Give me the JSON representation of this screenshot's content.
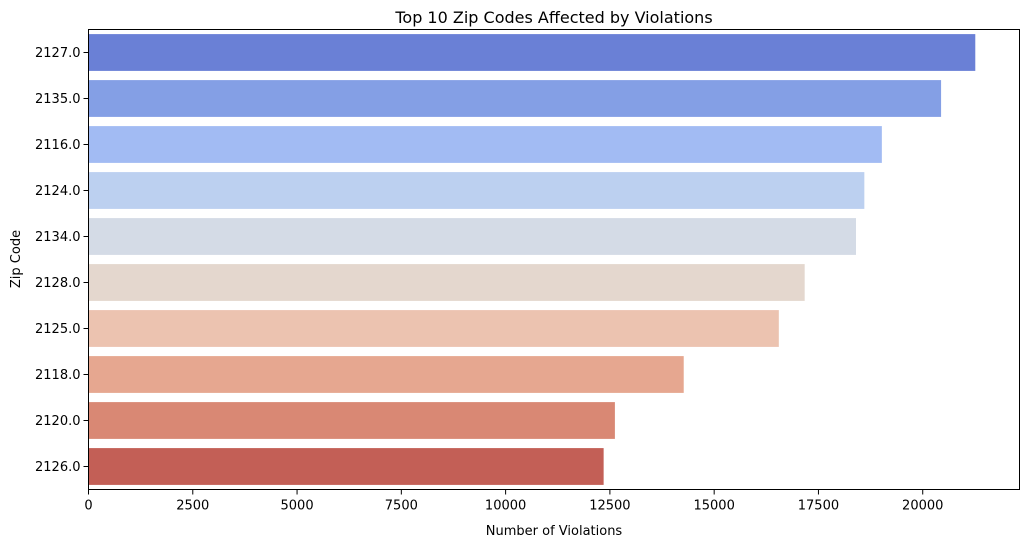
{
  "chart_data": {
    "type": "bar",
    "orientation": "horizontal",
    "title": "Top 10 Zip Codes Affected by Violations",
    "xlabel": "Number of Violations",
    "ylabel": "Zip Code",
    "categories": [
      "2127.0",
      "2135.0",
      "2116.0",
      "2124.0",
      "2134.0",
      "2128.0",
      "2125.0",
      "2118.0",
      "2120.0",
      "2126.0"
    ],
    "values": [
      21260,
      20440,
      19020,
      18600,
      18400,
      17170,
      16550,
      14270,
      12620,
      12350
    ],
    "xlim": [
      0,
      22320
    ],
    "xticks": [
      0,
      2500,
      5000,
      7500,
      10000,
      12500,
      15000,
      17500,
      20000
    ],
    "colors": [
      "#6a80d6",
      "#849fe5",
      "#a2bbf3",
      "#bcd0f0",
      "#d4dbe6",
      "#e4d7ce",
      "#ecc3b0",
      "#e6a790",
      "#d98874",
      "#c35f56"
    ],
    "grid": false,
    "legend": "none"
  }
}
